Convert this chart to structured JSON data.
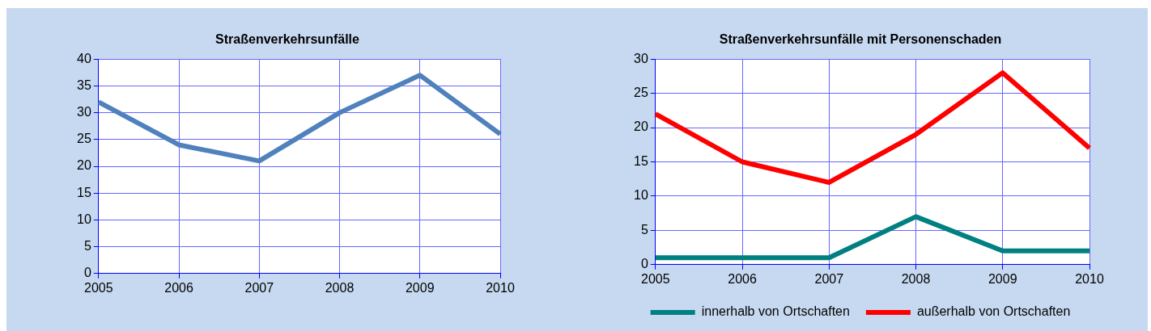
{
  "chart_data": [
    {
      "type": "line",
      "title": "Straßenverkehrsunfälle",
      "categories": [
        "2005",
        "2006",
        "2007",
        "2008",
        "2009",
        "2010"
      ],
      "ylim": [
        0,
        40
      ],
      "yticks": [
        0,
        5,
        10,
        15,
        20,
        25,
        30,
        35,
        40
      ],
      "grid": true,
      "legend": false,
      "marker": "none",
      "series": [
        {
          "color": "#4f81bd",
          "values": [
            32,
            24,
            21,
            30,
            37,
            26
          ]
        }
      ]
    },
    {
      "type": "line",
      "title": "Straßenverkehrsunfälle mit Personenschaden",
      "categories": [
        "2005",
        "2006",
        "2007",
        "2008",
        "2009",
        "2010"
      ],
      "ylim": [
        0,
        30
      ],
      "yticks": [
        0,
        5,
        10,
        15,
        20,
        25,
        30
      ],
      "grid": true,
      "legend": "bottom",
      "marker": "none",
      "series": [
        {
          "name": "innerhalb von Ortschaften",
          "color": "#008080",
          "values": [
            1,
            1,
            1,
            7,
            2,
            2
          ]
        },
        {
          "name": "außerhalb von Ortschaften",
          "color": "#ff0000",
          "values": [
            22,
            15,
            12,
            19,
            28,
            17
          ]
        }
      ]
    }
  ]
}
